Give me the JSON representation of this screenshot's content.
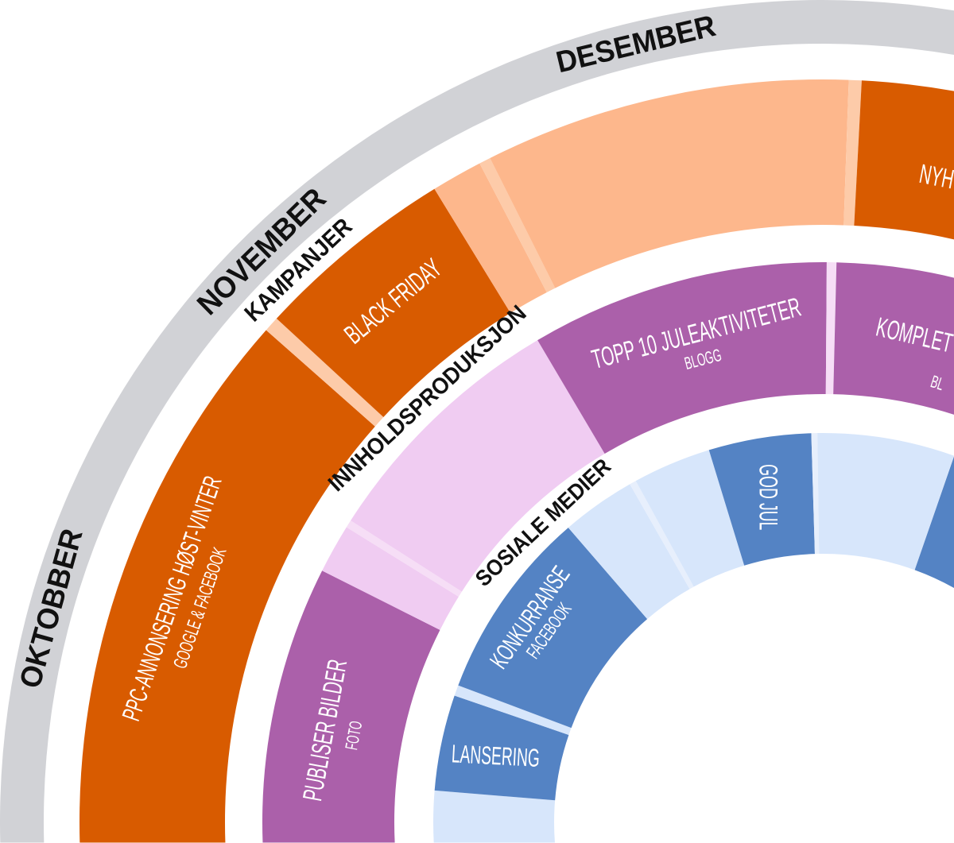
{
  "months": [
    {
      "label": "OKTOBBER"
    },
    {
      "label": "NOVEMBER"
    },
    {
      "label": "DESEMBER"
    }
  ],
  "categories": [
    {
      "label": "KAMPANJER"
    },
    {
      "label": "INNHOLDSPRODUKSJON"
    },
    {
      "label": "SOSIALE MEDIER"
    }
  ],
  "colors": {
    "month_ring": "#D1D2D6",
    "kampanjer": {
      "dark": "#D85B00",
      "light": "#FDB78C",
      "stripe": "#FDCBA9"
    },
    "innhold": {
      "dark": "#AB60AA",
      "light": "#F0CCF2",
      "stripe": "#F6DEF6"
    },
    "sosiale": {
      "dark": "#5483C4",
      "light": "#D7E6FB",
      "stripe": "#E7EFFC"
    }
  },
  "rings": {
    "kampanjer": [
      {
        "style": "dark",
        "title": "PPC-ANNONSERING HØST-VINTER",
        "subtitle": "GOOGLE & FACEBOOK"
      },
      {
        "style": "stripe"
      },
      {
        "style": "dark",
        "title": "BLACK FRIDAY"
      },
      {
        "style": "light"
      },
      {
        "style": "stripe"
      },
      {
        "style": "light"
      },
      {
        "style": "stripe"
      },
      {
        "style": "dark",
        "title": "NYH"
      }
    ],
    "innhold": [
      {
        "style": "dark",
        "title": "PUBLISER BILDER",
        "subtitle": "FOTO"
      },
      {
        "style": "light"
      },
      {
        "style": "stripe"
      },
      {
        "style": "light"
      },
      {
        "style": "dark",
        "title": "TOPP 10 JULEAKTIVITETER",
        "subtitle": "BLOGG"
      },
      {
        "style": "stripe"
      },
      {
        "style": "dark",
        "title": "KOMPLETT",
        "subtitle": "BL"
      }
    ],
    "sosiale": [
      {
        "style": "light"
      },
      {
        "style": "dark",
        "title": "LANSERING"
      },
      {
        "style": "light"
      },
      {
        "style": "dark",
        "title": "KONKURRANSE",
        "subtitle": "FACEBOOK"
      },
      {
        "style": "light"
      },
      {
        "style": "stripe"
      },
      {
        "style": "light"
      },
      {
        "style": "dark",
        "title": "GOD JUL"
      },
      {
        "style": "stripe"
      },
      {
        "style": "light"
      },
      {
        "style": "dark"
      }
    ]
  }
}
